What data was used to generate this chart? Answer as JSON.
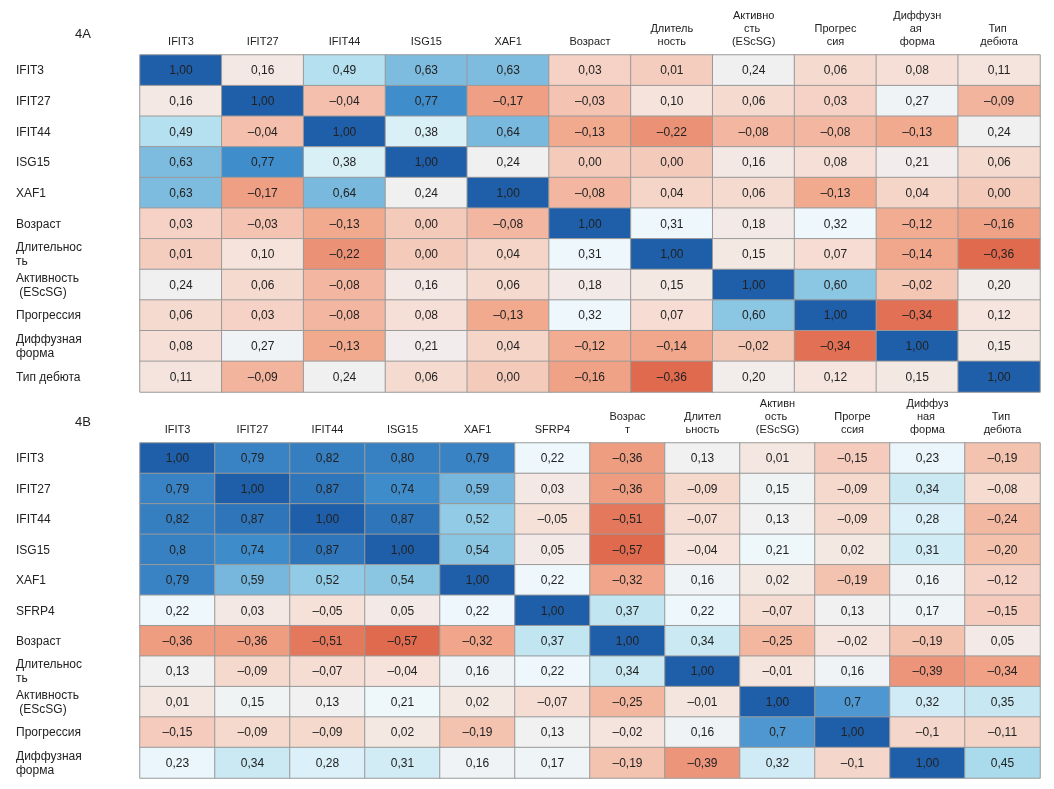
{
  "chart_data": [
    {
      "type": "heatmap",
      "title": "4A",
      "categories": [
        "IFIT3",
        "IFIT27",
        "IFIT44",
        "ISG15",
        "XAF1",
        "Возраст",
        "Длительность",
        "Активность (EScSG)",
        "Прогрессия",
        "Диффузная форма",
        "Тип дебюта"
      ],
      "y_categories": [
        "IFIT3",
        "IFIT27",
        "IFIT44",
        "ISG15",
        "XAF1",
        "Возраст",
        "Длительность",
        "Активность (EScSG)",
        "Прогрессия",
        "Диффузная форма",
        "Тип дебюта"
      ],
      "cells": [
        [
          1.0,
          0.16,
          0.49,
          0.63,
          0.63,
          0.03,
          0.01,
          0.24,
          0.06,
          0.08,
          0.11
        ],
        [
          0.16,
          1.0,
          -0.04,
          0.77,
          -0.17,
          -0.03,
          0.1,
          0.06,
          0.03,
          0.27,
          -0.09
        ],
        [
          0.49,
          -0.04,
          1.0,
          0.38,
          0.64,
          -0.13,
          -0.22,
          -0.08,
          -0.08,
          -0.13,
          0.24
        ],
        [
          0.63,
          0.77,
          0.38,
          1.0,
          0.24,
          0.0,
          0.0,
          0.16,
          0.08,
          0.21,
          0.06
        ],
        [
          0.63,
          -0.17,
          0.64,
          0.24,
          1.0,
          -0.08,
          0.04,
          0.06,
          -0.13,
          0.04,
          0.0
        ],
        [
          0.03,
          -0.03,
          -0.13,
          0.0,
          -0.08,
          1.0,
          0.31,
          0.18,
          0.32,
          -0.12,
          -0.16
        ],
        [
          0.01,
          0.1,
          -0.22,
          0.0,
          0.04,
          0.31,
          1.0,
          0.15,
          0.07,
          -0.14,
          -0.36
        ],
        [
          0.24,
          0.06,
          -0.08,
          0.16,
          0.06,
          0.18,
          0.15,
          1.0,
          0.6,
          -0.02,
          0.2
        ],
        [
          0.06,
          0.03,
          -0.08,
          0.08,
          -0.13,
          0.32,
          0.07,
          0.6,
          1.0,
          -0.34,
          0.12
        ],
        [
          0.08,
          0.27,
          -0.13,
          0.21,
          0.04,
          -0.12,
          -0.14,
          -0.02,
          -0.34,
          1.0,
          0.15
        ],
        [
          0.11,
          -0.09,
          0.24,
          0.06,
          0.0,
          -0.16,
          -0.36,
          0.2,
          0.12,
          0.15,
          1.0
        ]
      ],
      "cell_labels": [
        [
          "1,00",
          "0,16",
          "0,49",
          "0,63",
          "0,63",
          "0,03",
          "0,01",
          "0,24",
          "0,06",
          "0,08",
          "0,11"
        ],
        [
          "0,16",
          "1,00",
          "–0,04",
          "0,77",
          "–0,17",
          "–0,03",
          "0,10",
          "0,06",
          "0,03",
          "0,27",
          "–0,09"
        ],
        [
          "0,49",
          "–0,04",
          "1,00",
          "0,38",
          "0,64",
          "–0,13",
          "–0,22",
          "–0,08",
          "–0,08",
          "–0,13",
          "0,24"
        ],
        [
          "0,63",
          "0,77",
          "0,38",
          "1,00",
          "0,24",
          "0,00",
          "0,00",
          "0,16",
          "0,08",
          "0,21",
          "0,06"
        ],
        [
          "0,63",
          "–0,17",
          "0,64",
          "0,24",
          "1,00",
          "–0,08",
          "0,04",
          "0,06",
          "–0,13",
          "0,04",
          "0,00"
        ],
        [
          "0,03",
          "–0,03",
          "–0,13",
          "0,00",
          "–0,08",
          "1,00",
          "0,31",
          "0,18",
          "0,32",
          "–0,12",
          "–0,16"
        ],
        [
          "0,01",
          "0,10",
          "–0,22",
          "0,00",
          "0,04",
          "0,31",
          "1,00",
          "0,15",
          "0,07",
          "–0,14",
          "–0,36"
        ],
        [
          "0,24",
          "0,06",
          "–0,08",
          "0,16",
          "0,06",
          "0,18",
          "0,15",
          "1,00",
          "0,60",
          "–0,02",
          "0,20"
        ],
        [
          "0,06",
          "0,03",
          "–0,08",
          "0,08",
          "–0,13",
          "0,32",
          "0,07",
          "0,60",
          "1,00",
          "–0,34",
          "0,12"
        ],
        [
          "0,08",
          "0,27",
          "–0,13",
          "0,21",
          "0,04",
          "–0,12",
          "–0,14",
          "–0,02",
          "–0,34",
          "1,00",
          "0,15"
        ],
        [
          "0,11",
          "–0,09",
          "0,24",
          "0,06",
          "0,00",
          "–0,16",
          "–0,36",
          "0,20",
          "0,12",
          "0,15",
          "1,00"
        ]
      ]
    },
    {
      "type": "heatmap",
      "title": "4B",
      "categories": [
        "IFIT3",
        "IFIT27",
        "IFIT44",
        "ISG15",
        "XAF1",
        "SFRP4",
        "Возраст",
        "Длительность",
        "Активность (EScSG)",
        "Прогрессия",
        "Диффузная форма",
        "Тип дебюта"
      ],
      "y_categories": [
        "IFIT3",
        "IFIT27",
        "IFIT44",
        "ISG15",
        "XAF1",
        "SFRP4",
        "Возраст",
        "Длительность",
        "Активность (EScSG)",
        "Прогрессия",
        "Диффузная форма"
      ],
      "cells": [
        [
          1.0,
          0.79,
          0.82,
          0.8,
          0.79,
          0.22,
          -0.36,
          0.13,
          0.01,
          -0.15,
          0.23,
          -0.19
        ],
        [
          0.79,
          1.0,
          0.87,
          0.74,
          0.59,
          0.03,
          -0.36,
          -0.09,
          0.15,
          -0.09,
          0.34,
          -0.08
        ],
        [
          0.82,
          0.87,
          1.0,
          0.87,
          0.52,
          -0.05,
          -0.51,
          -0.07,
          0.13,
          -0.09,
          0.28,
          -0.24
        ],
        [
          0.8,
          0.74,
          0.87,
          1.0,
          0.54,
          0.05,
          -0.57,
          -0.04,
          0.21,
          0.02,
          0.31,
          -0.2
        ],
        [
          0.79,
          0.59,
          0.52,
          0.54,
          1.0,
          0.22,
          -0.32,
          0.16,
          0.02,
          -0.19,
          0.16,
          -0.12
        ],
        [
          0.22,
          0.03,
          -0.05,
          0.05,
          0.22,
          1.0,
          0.37,
          0.22,
          -0.07,
          0.13,
          0.17,
          -0.15
        ],
        [
          -0.36,
          -0.36,
          -0.51,
          -0.57,
          -0.32,
          0.37,
          1.0,
          0.34,
          -0.25,
          -0.02,
          -0.19,
          0.05
        ],
        [
          0.13,
          -0.09,
          -0.07,
          -0.04,
          0.16,
          0.22,
          0.34,
          1.0,
          -0.01,
          0.16,
          -0.39,
          -0.34
        ],
        [
          0.01,
          0.15,
          0.13,
          0.21,
          0.02,
          -0.07,
          -0.25,
          -0.01,
          1.0,
          0.7,
          0.32,
          0.35
        ],
        [
          -0.15,
          -0.09,
          -0.09,
          0.02,
          -0.19,
          0.13,
          -0.02,
          0.16,
          0.7,
          1.0,
          -0.1,
          -0.11
        ],
        [
          0.23,
          0.34,
          0.28,
          0.31,
          0.16,
          0.17,
          -0.19,
          -0.39,
          0.32,
          -0.1,
          1.0,
          0.45
        ]
      ],
      "cell_labels": [
        [
          "1,00",
          "0,79",
          "0,82",
          "0,80",
          "0,79",
          "0,22",
          "–0,36",
          "0,13",
          "0,01",
          "–0,15",
          "0,23",
          "–0,19"
        ],
        [
          "0,79",
          "1,00",
          "0,87",
          "0,74",
          "0,59",
          "0,03",
          "–0,36",
          "–0,09",
          "0,15",
          "–0,09",
          "0,34",
          "–0,08"
        ],
        [
          "0,82",
          "0,87",
          "1,00",
          "0,87",
          "0,52",
          "–0,05",
          "–0,51",
          "–0,07",
          "0,13",
          "–0,09",
          "0,28",
          "–0,24"
        ],
        [
          "0,8",
          "0,74",
          "0,87",
          "1,00",
          "0,54",
          "0,05",
          "–0,57",
          "–0,04",
          "0,21",
          "0,02",
          "0,31",
          "–0,20"
        ],
        [
          "0,79",
          "0,59",
          "0,52",
          "0,54",
          "1,00",
          "0,22",
          "–0,32",
          "0,16",
          "0,02",
          "–0,19",
          "0,16",
          "–0,12"
        ],
        [
          "0,22",
          "0,03",
          "–0,05",
          "0,05",
          "0,22",
          "1,00",
          "0,37",
          "0,22",
          "–0,07",
          "0,13",
          "0,17",
          "–0,15"
        ],
        [
          "–0,36",
          "–0,36",
          "–0,51",
          "–0,57",
          "–0,32",
          "0,37",
          "1,00",
          "0,34",
          "–0,25",
          "–0,02",
          "–0,19",
          "0,05"
        ],
        [
          "0,13",
          "–0,09",
          "–0,07",
          "–0,04",
          "0,16",
          "0,22",
          "0,34",
          "1,00",
          "–0,01",
          "0,16",
          "–0,39",
          "–0,34"
        ],
        [
          "0,01",
          "0,15",
          "0,13",
          "0,21",
          "0,02",
          "–0,07",
          "–0,25",
          "–0,01",
          "1,00",
          "0,7",
          "0,32",
          "0,35"
        ],
        [
          "–0,15",
          "–0,09",
          "–0,09",
          "0,02",
          "–0,19",
          "0,13",
          "–0,02",
          "0,16",
          "0,7",
          "1,00",
          "–0,1",
          "–0,11"
        ],
        [
          "0,23",
          "0,34",
          "0,28",
          "0,31",
          "0,16",
          "0,17",
          "–0,19",
          "–0,39",
          "0,32",
          "–0,1",
          "1,00",
          "0,45"
        ]
      ]
    }
  ]
}
